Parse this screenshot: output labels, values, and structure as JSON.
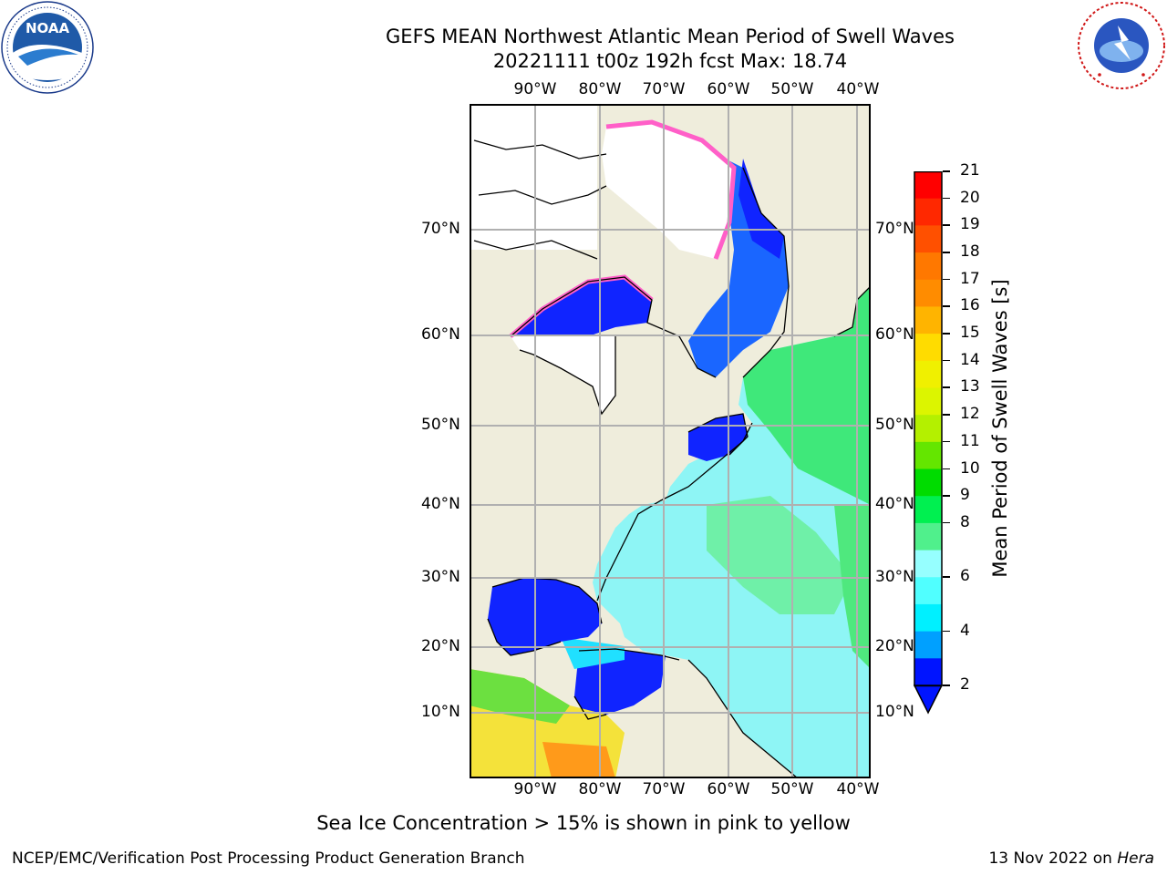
{
  "header": {
    "title_line1": "GEFS MEAN Northwest Atlantic Mean Period of Swell Waves",
    "title_line2": "20221111 t00z 192h fcst   Max: 18.74"
  },
  "logos": {
    "noaa": {
      "text": "NOAA",
      "ring_text": "NATIONAL OCEANIC AND ATMOSPHERIC ADMINISTRATION · U.S. DEPARTMENT OF COMMERCE"
    },
    "nws": {
      "ring_text": "NATIONAL WEATHER SERVICE"
    }
  },
  "map": {
    "lon_labels": [
      "90°W",
      "80°W",
      "70°W",
      "60°W",
      "50°W",
      "40°W"
    ],
    "lat_labels": [
      "70°N",
      "60°N",
      "50°N",
      "40°N",
      "30°N",
      "20°N",
      "10°N"
    ],
    "colors": {
      "land": "#efeddc",
      "ice": "#ffffff",
      "grid": "#b0b0b0",
      "coast": "#000000"
    }
  },
  "colorbar": {
    "label": "Mean Period of Swell Waves [s]",
    "ticks": [
      "21",
      "20",
      "19",
      "18",
      "17",
      "16",
      "15",
      "14",
      "13",
      "12",
      "11",
      "10",
      "9",
      "8",
      "6",
      "4",
      "2"
    ],
    "colors_top_to_bottom": [
      "#ff0000",
      "#ff2800",
      "#ff5000",
      "#ff7800",
      "#ff8c00",
      "#ffb400",
      "#ffdc00",
      "#f0f000",
      "#dcf500",
      "#b4f000",
      "#64e600",
      "#00dc00",
      "#00f050",
      "#50f08c",
      "#96ffff",
      "#50ffff",
      "#00f0ff",
      "#00a0ff",
      "#0014ff"
    ],
    "extend_color": "#0014ff"
  },
  "footer": {
    "note": "Sea Ice Concentration > 15% is shown in pink to yellow",
    "credit": "NCEP/EMC/Verification Post Processing Product Generation Branch",
    "date": "13 Nov 2022 on",
    "host": "Hera"
  }
}
